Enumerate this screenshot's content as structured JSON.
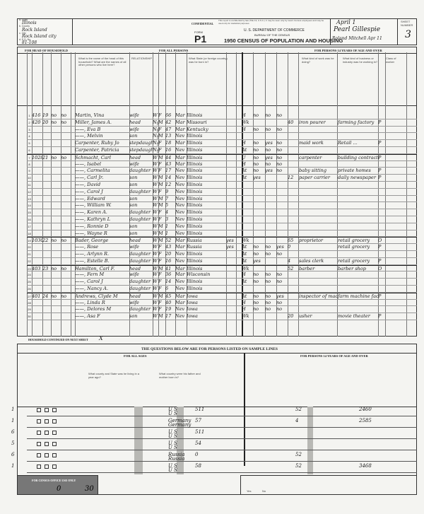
{
  "header": {
    "state_label": "a. State",
    "state": "Illinois",
    "county_label": "b. County",
    "county": "Rock Island",
    "city_label": "c. City",
    "city": "Rock Island city",
    "ed_label": "d. E.D. No.",
    "ed": "81-108",
    "confidential": "CONFIDENTIAL",
    "confidential_text": "This report is confidential by law (Title 13, U.S.C.). It may be seen only by sworn Census employees and may be used only for statistical purposes.",
    "form_label": "FORM",
    "form": "P1",
    "department": "U. S. DEPARTMENT OF COMMERCE",
    "bureau": "BUREAU OF THE CENSUS",
    "title": "1950 CENSUS OF POPULATION AND HOUSING",
    "date": "April 1",
    "enumerator": "Pearl Gillespie",
    "supervisor": "Roland Mitchell Apr 11",
    "sheet_label": "SHEET NUMBER",
    "sheet": "3"
  },
  "sections": {
    "head_of_household": "FOR HEAD OF HOUSEHOLD",
    "all_persons": "FOR ALL PERSONS",
    "persons_14": "FOR PERSONS 14 YEARS OF AGE AND OVER",
    "name_q": "What is the name of the head of this household? What are the names of all other persons who live here?",
    "relationship": "RELATIONSHIP",
    "birthplace_q": "What State (or foreign country) was he born in?",
    "occupation_q": "What kind of work was he doing?",
    "industry_q": "What kind of business or industry was he working in?",
    "class": "Class of worker",
    "continued": "HOUSEHOLD CONTINUED ON NEXT SHEET",
    "continued_mark": "X",
    "sample_title": "THE QUESTIONS BELOW ARE FOR PERSONS LISTED ON SAMPLE LINES",
    "all_ages": "FOR ALL AGES",
    "sample_14": "FOR PERSONS 14 YEARS OF AGE AND OVER",
    "parents_q": "What country were his father and mother born in?",
    "residence_q": "What county and State was he living in a year ago?",
    "census_office": "FOR CENSUS OFFICE USE ONLY"
  },
  "rows": [
    {
      "line": "1",
      "dw": "416",
      "hh": "19",
      "f1": "no",
      "f2": "no",
      "name": "Martin, Vina",
      "rel": "wife",
      "race": "W",
      "sex": "F",
      "age": "66",
      "mar": "Mar",
      "bp": "Illinois",
      "nat": "",
      "emp": "H",
      "q16": "no",
      "q17": "no",
      "q18": "no",
      "hrs": "",
      "occ": "",
      "ind": "",
      "cls": ""
    },
    {
      "line": "2",
      "dw": "420",
      "hh": "20",
      "f1": "no",
      "f2": "no",
      "name": "Miller, James A.",
      "rel": "head",
      "race": "Ng",
      "sex": "M",
      "age": "42",
      "mar": "Mar",
      "bp": "Missouri",
      "nat": "",
      "emp": "Wk",
      "q16": "",
      "q17": "",
      "q18": "",
      "hrs": "40",
      "occ": "iron pourer",
      "ind": "farming factory",
      "cls": "P"
    },
    {
      "line": "3",
      "dw": "",
      "hh": "",
      "f1": "",
      "f2": "",
      "name": "——, Eva B",
      "rel": "wife",
      "race": "Ng",
      "sex": "F",
      "age": "47",
      "mar": "Mar",
      "bp": "Kentucky",
      "nat": "",
      "emp": "H",
      "q16": "no",
      "q17": "no",
      "q18": "no",
      "hrs": "",
      "occ": "",
      "ind": "",
      "cls": ""
    },
    {
      "line": "4",
      "dw": "",
      "hh": "",
      "f1": "",
      "f2": "",
      "name": "——, Melvin",
      "rel": "son",
      "race": "Ng",
      "sex": "M",
      "age": "13",
      "mar": "Nev",
      "bp": "Illinois",
      "nat": "",
      "emp": "",
      "q16": "",
      "q17": "",
      "q18": "",
      "hrs": "",
      "occ": "",
      "ind": "",
      "cls": ""
    },
    {
      "line": "5",
      "dw": "",
      "hh": "",
      "f1": "",
      "f2": "",
      "name": "Carpenter, Ruby Jo",
      "rel": "stepdaughter",
      "race": "Ng",
      "sex": "F",
      "age": "18",
      "mar": "Mar",
      "bp": "Illinois",
      "nat": "",
      "emp": "H",
      "q16": "no",
      "q17": "yes",
      "q18": "no",
      "hrs": "",
      "occ": "maid work",
      "ind": "Retail ...",
      "cls": "P"
    },
    {
      "line": "6",
      "dw": "",
      "hh": "",
      "f1": "",
      "f2": "",
      "name": "Carpenter, Patricia",
      "rel": "stepdaughter",
      "race": "Ng",
      "sex": "F",
      "age": "16",
      "mar": "Nev",
      "bp": "Illinois",
      "nat": "",
      "emp": "At",
      "q16": "no",
      "q17": "no",
      "q18": "no",
      "hrs": "",
      "occ": "",
      "ind": "",
      "cls": ""
    },
    {
      "line": "7",
      "dw": "1028",
      "hh": "21",
      "f1": "no",
      "f2": "no",
      "name": "Schmacht, Carl",
      "rel": "head",
      "race": "W",
      "sex": "M",
      "age": "44",
      "mar": "Mar",
      "bp": "Illinois",
      "nat": "",
      "emp": "U",
      "q16": "no",
      "q17": "yes",
      "q18": "no",
      "hrs": "",
      "occ": "carpenter",
      "ind": "building contractor",
      "cls": "P"
    },
    {
      "line": "8",
      "dw": "",
      "hh": "",
      "f1": "",
      "f2": "",
      "name": "——, Isabel",
      "rel": "wife",
      "race": "W",
      "sex": "F",
      "age": "43",
      "mar": "Mar",
      "bp": "Illinois",
      "nat": "",
      "emp": "H",
      "q16": "no",
      "q17": "no",
      "q18": "no",
      "hrs": "",
      "occ": "",
      "ind": "",
      "cls": ""
    },
    {
      "line": "9",
      "dw": "",
      "hh": "",
      "f1": "",
      "f2": "",
      "name": "——, Carmelita",
      "rel": "daughter",
      "race": "W",
      "sex": "F",
      "age": "17",
      "mar": "Nev",
      "bp": "Illinois",
      "nat": "",
      "emp": "At",
      "q16": "no",
      "q17": "yes",
      "q18": "no",
      "hrs": "",
      "occ": "baby sitting",
      "ind": "private homes",
      "cls": "P"
    },
    {
      "line": "10",
      "dw": "",
      "hh": "",
      "f1": "",
      "f2": "",
      "name": "——, Carl Jr.",
      "rel": "son",
      "race": "W",
      "sex": "M",
      "age": "14",
      "mar": "Nev",
      "bp": "Illinois",
      "nat": "",
      "emp": "At",
      "q16": "yes",
      "q17": "",
      "q18": "",
      "hrs": "12",
      "occ": "paper carrier",
      "ind": "daily newspaper",
      "cls": "P"
    },
    {
      "line": "11",
      "dw": "",
      "hh": "",
      "f1": "",
      "f2": "",
      "name": "——, David",
      "rel": "son",
      "race": "W",
      "sex": "M",
      "age": "12",
      "mar": "Nev",
      "bp": "Illinois",
      "nat": "",
      "emp": "",
      "q16": "",
      "q17": "",
      "q18": "",
      "hrs": "",
      "occ": "",
      "ind": "",
      "cls": ""
    },
    {
      "line": "12",
      "dw": "",
      "hh": "",
      "f1": "",
      "f2": "",
      "name": "——, Carol J",
      "rel": "daughter",
      "race": "W",
      "sex": "F",
      "age": "9",
      "mar": "Nev",
      "bp": "Illinois",
      "nat": "",
      "emp": "",
      "q16": "",
      "q17": "",
      "q18": "",
      "hrs": "",
      "occ": "",
      "ind": "",
      "cls": ""
    },
    {
      "line": "13",
      "dw": "",
      "hh": "",
      "f1": "",
      "f2": "",
      "name": "——, Edward",
      "rel": "son",
      "race": "W",
      "sex": "M",
      "age": "7",
      "mar": "Nev",
      "bp": "Illinois",
      "nat": "",
      "emp": "",
      "q16": "",
      "q17": "",
      "q18": "",
      "hrs": "",
      "occ": "",
      "ind": "",
      "cls": ""
    },
    {
      "line": "14",
      "dw": "",
      "hh": "",
      "f1": "",
      "f2": "",
      "name": "——, William W.",
      "rel": "son",
      "race": "W",
      "sex": "M",
      "age": "5",
      "mar": "Nev",
      "bp": "Illinois",
      "nat": "",
      "emp": "",
      "q16": "",
      "q17": "",
      "q18": "",
      "hrs": "",
      "occ": "",
      "ind": "",
      "cls": ""
    },
    {
      "line": "15",
      "dw": "",
      "hh": "",
      "f1": "",
      "f2": "",
      "name": "——, Karen A.",
      "rel": "daughter",
      "race": "W",
      "sex": "F",
      "age": "4",
      "mar": "Nev",
      "bp": "Illinois",
      "nat": "",
      "emp": "",
      "q16": "",
      "q17": "",
      "q18": "",
      "hrs": "",
      "occ": "",
      "ind": "",
      "cls": ""
    },
    {
      "line": "16",
      "dw": "",
      "hh": "",
      "f1": "",
      "f2": "",
      "name": "——, Kathryn L",
      "rel": "daughter",
      "race": "W",
      "sex": "F",
      "age": "3",
      "mar": "Nev",
      "bp": "Illinois",
      "nat": "",
      "emp": "",
      "q16": "",
      "q17": "",
      "q18": "",
      "hrs": "",
      "occ": "",
      "ind": "",
      "cls": ""
    },
    {
      "line": "17",
      "dw": "",
      "hh": "",
      "f1": "",
      "f2": "",
      "name": "——, Ronnie D",
      "rel": "son",
      "race": "W",
      "sex": "M",
      "age": "1",
      "mar": "Nev",
      "bp": "Illinois",
      "nat": "",
      "emp": "",
      "q16": "",
      "q17": "",
      "q18": "",
      "hrs": "",
      "occ": "",
      "ind": "",
      "cls": ""
    },
    {
      "line": "18",
      "dw": "",
      "hh": "",
      "f1": "",
      "f2": "",
      "name": "——, Wayne R",
      "rel": "son",
      "race": "W",
      "sex": "M",
      "age": "1",
      "mar": "Nev",
      "bp": "Illinois",
      "nat": "",
      "emp": "",
      "q16": "",
      "q17": "",
      "q18": "",
      "hrs": "",
      "occ": "",
      "ind": "",
      "cls": ""
    },
    {
      "line": "19",
      "dw": "1030 rear",
      "hh": "22",
      "f1": "no",
      "f2": "no",
      "name": "Bader, George",
      "rel": "head",
      "race": "W",
      "sex": "M",
      "age": "52",
      "mar": "Mar",
      "bp": "Russia",
      "nat": "yes",
      "emp": "Wk",
      "q16": "",
      "q17": "",
      "q18": "",
      "hrs": "65",
      "occ": "proprietor",
      "ind": "retail grocery",
      "cls": "O"
    },
    {
      "line": "20",
      "dw": "",
      "hh": "",
      "f1": "",
      "f2": "",
      "name": "——, Rose",
      "rel": "wife",
      "race": "W",
      "sex": "F",
      "age": "43",
      "mar": "Mar",
      "bp": "Russia",
      "nat": "yes",
      "emp": "At",
      "q16": "no",
      "q17": "no",
      "q18": "yes",
      "hrs": "0",
      "occ": "",
      "ind": "retail grocery",
      "cls": "P"
    },
    {
      "line": "21",
      "dw": "",
      "hh": "",
      "f1": "",
      "f2": "",
      "name": "——, Arlynn R.",
      "rel": "daughter",
      "race": "W",
      "sex": "F",
      "age": "20",
      "mar": "Nev",
      "bp": "Illinois",
      "nat": "",
      "emp": "At",
      "q16": "no",
      "q17": "no",
      "q18": "no",
      "hrs": "",
      "occ": "",
      "ind": "",
      "cls": ""
    },
    {
      "line": "22",
      "dw": "",
      "hh": "",
      "f1": "",
      "f2": "",
      "name": "——, Estelle B.",
      "rel": "daughter",
      "race": "W",
      "sex": "F",
      "age": "16",
      "mar": "Nev",
      "bp": "Illinois",
      "nat": "",
      "emp": "At",
      "q16": "yes",
      "q17": "",
      "q18": "",
      "hrs": "4",
      "occ": "sales clerk",
      "ind": "retail grocery",
      "cls": "P"
    },
    {
      "line": "23",
      "dw": "403",
      "hh": "23",
      "f1": "no",
      "f2": "no",
      "name": "Hamilton, Carl F.",
      "rel": "head",
      "race": "W",
      "sex": "M",
      "age": "41",
      "mar": "Mar",
      "bp": "Illinois",
      "nat": "",
      "emp": "Wk",
      "q16": "",
      "q17": "",
      "q18": "",
      "hrs": "52",
      "occ": "barber",
      "ind": "barber shop",
      "cls": "O"
    },
    {
      "line": "24",
      "dw": "",
      "hh": "",
      "f1": "",
      "f2": "",
      "name": "——, Fern M",
      "rel": "wife",
      "race": "W",
      "sex": "F",
      "age": "36",
      "mar": "Mar",
      "bp": "Wisconsin",
      "nat": "",
      "emp": "H",
      "q16": "no",
      "q17": "no",
      "q18": "no",
      "hrs": "",
      "occ": "",
      "ind": "",
      "cls": ""
    },
    {
      "line": "25",
      "dw": "",
      "hh": "",
      "f1": "",
      "f2": "",
      "name": "——, Carol J",
      "rel": "daughter",
      "race": "W",
      "sex": "F",
      "age": "14",
      "mar": "Nev",
      "bp": "Illinois",
      "nat": "",
      "emp": "At",
      "q16": "no",
      "q17": "no",
      "q18": "no",
      "hrs": "",
      "occ": "",
      "ind": "",
      "cls": ""
    },
    {
      "line": "26",
      "dw": "",
      "hh": "",
      "f1": "",
      "f2": "",
      "name": "——, Nancy A.",
      "rel": "daughter",
      "race": "W",
      "sex": "F",
      "age": "6",
      "mar": "Nev",
      "bp": "Illinois",
      "nat": "",
      "emp": "",
      "q16": "",
      "q17": "",
      "q18": "",
      "hrs": "",
      "occ": "",
      "ind": "",
      "cls": ""
    },
    {
      "line": "27",
      "dw": "401",
      "hh": "24",
      "f1": "no",
      "f2": "no",
      "name": "Andrews, Clyde M",
      "rel": "head",
      "race": "W",
      "sex": "M",
      "age": "45",
      "mar": "Mar",
      "bp": "Iowa",
      "nat": "",
      "emp": "At",
      "q16": "no",
      "q17": "no",
      "q18": "yes",
      "hrs": "",
      "occ": "inspector of machinery parts",
      "ind": "farm machine factory",
      "cls": "P"
    },
    {
      "line": "28",
      "dw": "",
      "hh": "",
      "f1": "",
      "f2": "",
      "name": "——, Linda R",
      "rel": "wife",
      "race": "W",
      "sex": "F",
      "age": "40",
      "mar": "Mar",
      "bp": "Iowa",
      "nat": "",
      "emp": "H",
      "q16": "no",
      "q17": "no",
      "q18": "no",
      "hrs": "",
      "occ": "",
      "ind": "",
      "cls": ""
    },
    {
      "line": "29",
      "dw": "",
      "hh": "",
      "f1": "",
      "f2": "",
      "name": "——, Delores M",
      "rel": "daughter",
      "race": "W",
      "sex": "F",
      "age": "19",
      "mar": "Nev",
      "bp": "Iowa",
      "nat": "",
      "emp": "H",
      "q16": "no",
      "q17": "no",
      "q18": "no",
      "hrs": "",
      "occ": "",
      "ind": "",
      "cls": ""
    },
    {
      "line": "30",
      "dw": "",
      "hh": "",
      "f1": "",
      "f2": "",
      "name": "——, Asa F",
      "rel": "son",
      "race": "W",
      "sex": "M",
      "age": "17",
      "mar": "Nev",
      "bp": "Iowa",
      "nat": "",
      "emp": "Wk",
      "q16": "",
      "q17": "",
      "q18": "",
      "hrs": "20",
      "occ": "usher",
      "ind": "movie theater",
      "cls": "P"
    }
  ],
  "sample_rows": [
    {
      "mark": "1",
      "father": "U S",
      "mother": "U S",
      "grade": "511",
      "hrs": "52",
      "income": "2460"
    },
    {
      "mark": "1",
      "father": "Germany",
      "mother": "Germany",
      "grade": "57",
      "hrs": "4",
      "income": "2585"
    },
    {
      "mark": "6",
      "father": "U S",
      "mother": "U S",
      "grade": "511",
      "hrs": "",
      "income": ""
    },
    {
      "mark": "5",
      "father": "U S",
      "mother": "U S",
      "grade": "54",
      "hrs": "",
      "income": ""
    },
    {
      "mark": "6",
      "father": "Russia",
      "mother": "Russia",
      "grade": "0",
      "hrs": "52",
      "income": ""
    },
    {
      "mark": "1",
      "father": "U S",
      "mother": "U S",
      "grade": "58",
      "hrs": "52",
      "income": "3468"
    }
  ],
  "footer": {
    "count_a": "0",
    "count_b": "30",
    "yes": "Yes",
    "no": "No"
  }
}
